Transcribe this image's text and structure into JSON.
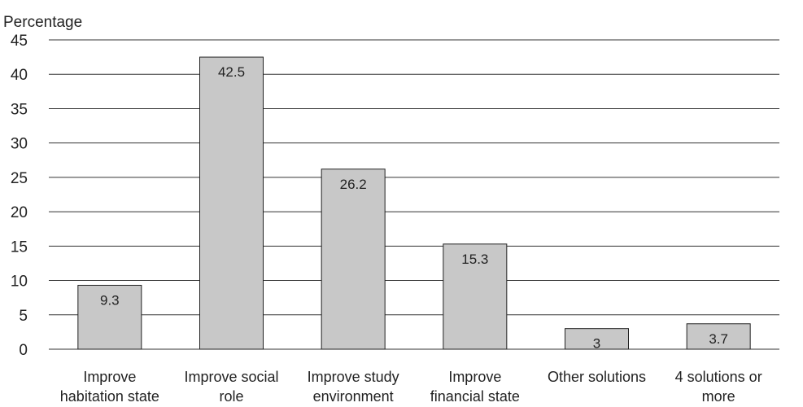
{
  "chart_data": {
    "type": "bar",
    "title": "",
    "xlabel": "",
    "ylabel": "Percentage",
    "ylim": [
      0,
      45
    ],
    "yticks": [
      0,
      5,
      10,
      15,
      20,
      25,
      30,
      35,
      40,
      45
    ],
    "grid": "horizontal",
    "legend": "none",
    "categories": [
      [
        "Improve",
        "habitation state"
      ],
      [
        "Improve social",
        "role"
      ],
      [
        "Improve study",
        "environment"
      ],
      [
        "Improve",
        "financial state"
      ],
      [
        "Other solutions"
      ],
      [
        "4 solutions or",
        "more"
      ]
    ],
    "values": [
      9.3,
      42.5,
      26.2,
      15.3,
      3,
      3.7
    ],
    "data_labels": [
      "9.3",
      "42.5",
      "26.2",
      "15.3",
      "3",
      "3.7"
    ],
    "colors": {
      "bar_fill": "#c8c8c8",
      "bar_stroke": "#222222",
      "grid": "#333333",
      "text": "#222222"
    }
  }
}
